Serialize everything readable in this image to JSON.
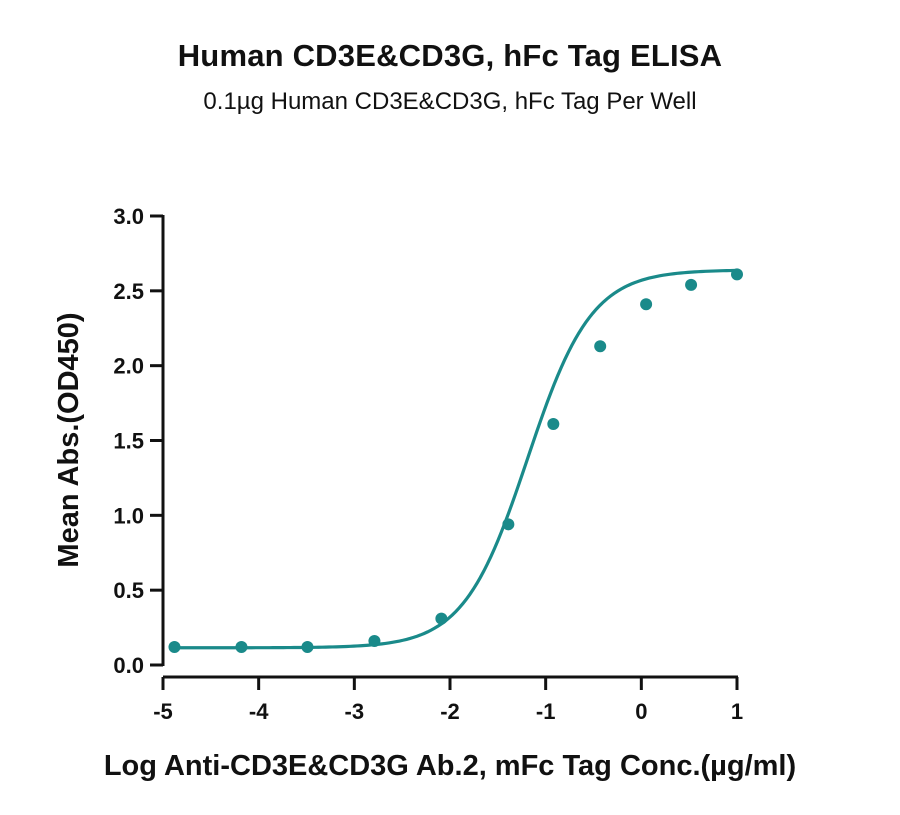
{
  "chart_data": {
    "type": "scatter",
    "title": "Human CD3E&CD3G, hFc Tag ELISA",
    "subtitle": "0.1µg Human CD3E&CD3G, hFc Tag Per Well",
    "xlabel": "Log Anti-CD3E&CD3G Ab.2, mFc Tag Conc.(µg/ml)",
    "ylabel": "Mean Abs.(OD450)",
    "xlim": [
      -5,
      1
    ],
    "ylim": [
      0,
      3
    ],
    "xticks": [
      "-5",
      "-4",
      "-3",
      "-2",
      "-1",
      "0",
      "1"
    ],
    "yticks": [
      "0.0",
      "0.5",
      "1.0",
      "1.5",
      "2.0",
      "2.5",
      "3.0"
    ],
    "grid": false,
    "color": "#1a8a8a",
    "series": [
      {
        "x": [
          -4.88,
          -4.18,
          -3.49,
          -2.79,
          -2.09,
          -1.39,
          -0.92,
          -0.43,
          0.05,
          0.52,
          1.0
        ],
        "y": [
          0.12,
          0.12,
          0.12,
          0.16,
          0.31,
          0.94,
          1.61,
          2.13,
          2.41,
          2.54,
          2.61
        ]
      }
    ],
    "fit_curve": {
      "type": "4PL",
      "bottom": 0.115,
      "top": 2.64,
      "logEC50": -1.19,
      "hill": 1.3
    }
  }
}
